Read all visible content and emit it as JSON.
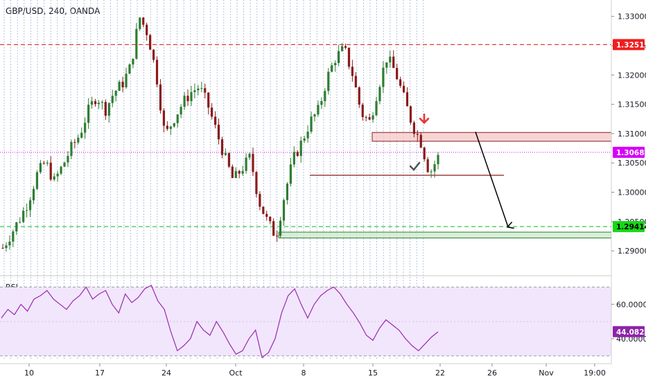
{
  "header": {
    "symbol_line": "GBP/USD, 240, OANDA"
  },
  "rsi_panel": {
    "label": "RSI"
  },
  "colors": {
    "up": "#2e7d32",
    "down": "#8b1a1a",
    "resistance_line": "#e53935",
    "support_line": "#2ecc40",
    "current_line": "#d500f9",
    "rsi_line": "#9c27b0",
    "rsi_band": "#f1e6fb"
  },
  "chart_data": [
    {
      "type": "candlestick",
      "title": "GBP/USD, 240, OANDA",
      "ylim": [
        1.286,
        1.3328
      ],
      "y_ticks": [
        "1.33000",
        "1.32500",
        "1.32000",
        "1.31500",
        "1.31000",
        "1.30500",
        "1.30000",
        "1.29500",
        "1.29000"
      ],
      "x_ticks": [
        "10",
        "17",
        "24",
        "Oct",
        "8",
        "15",
        "22",
        "26",
        "Nov",
        "19:00"
      ],
      "price_tags": [
        {
          "label": "1.32519",
          "value": 1.32519,
          "kind": "resistance"
        },
        {
          "label": "1.30682",
          "value": 1.30682,
          "kind": "current"
        },
        {
          "label": "1.29414",
          "value": 1.29414,
          "kind": "support"
        }
      ],
      "zones": [
        {
          "name": "resistance zone",
          "from": 1.3087,
          "to": 1.3102
        },
        {
          "name": "support zone",
          "from": 1.2922,
          "to": 1.2932
        }
      ],
      "trendline": {
        "price": 1.3029
      },
      "projection": {
        "from_price": 1.3103,
        "to_price": 1.2941
      },
      "series": [
        {
          "name": "path",
          "values": [
            1.2905,
            1.293,
            1.2955,
            1.2985,
            1.303,
            1.3052,
            1.3018,
            1.3045,
            1.3075,
            1.3098,
            1.3138,
            1.3165,
            1.314,
            1.317,
            1.3185,
            1.3215,
            1.33,
            1.327,
            1.32,
            1.3095,
            1.3125,
            1.315,
            1.317,
            1.318,
            1.315,
            1.3105,
            1.306,
            1.302,
            1.304,
            1.306,
            1.2985,
            1.295,
            1.2925,
            1.2995,
            1.3055,
            1.3085,
            1.312,
            1.314,
            1.3195,
            1.323,
            1.3245,
            1.32,
            1.3135,
            1.312,
            1.318,
            1.323,
            1.3205,
            1.316,
            1.3115,
            1.3085,
            1.3032,
            1.306
          ]
        }
      ]
    },
    {
      "type": "line",
      "title": "RSI",
      "ylim": [
        27.5,
        75.0
      ],
      "y_ticks": [
        "60.0000",
        "40.0000"
      ],
      "band": [
        30,
        70
      ],
      "current_tag": {
        "label": "44.0821",
        "value": 44.0821
      },
      "series": [
        {
          "name": "RSI",
          "values": [
            52,
            57,
            54,
            60,
            56,
            63,
            65,
            68,
            63,
            60,
            57,
            62,
            65,
            70,
            63,
            66,
            68,
            60,
            55,
            66,
            61,
            64,
            69,
            71,
            62,
            57,
            44,
            33,
            36,
            40,
            50,
            45,
            42,
            50,
            44,
            37,
            31,
            33,
            40,
            45,
            29,
            32,
            40,
            55,
            65,
            69,
            60,
            52,
            60,
            65,
            68,
            70,
            66,
            60,
            55,
            49,
            42,
            39,
            46,
            51,
            48,
            45,
            40,
            36,
            33,
            37,
            41,
            44
          ]
        }
      ]
    }
  ]
}
